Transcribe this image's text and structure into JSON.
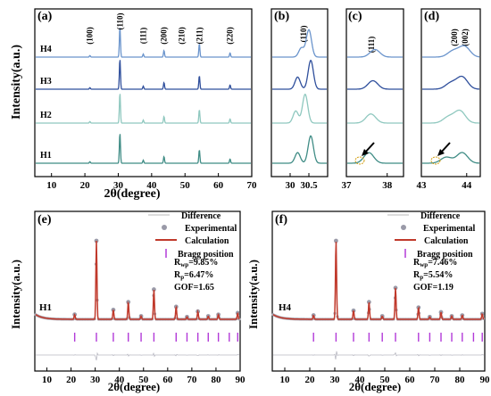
{
  "colors": {
    "H1": "#3f8c85",
    "H2": "#8fc8bf",
    "H3": "#2f4f9c",
    "H4": "#6a94cc",
    "refine_calc": "#c0392b",
    "refine_exp": "#9a9aa8",
    "bragg": "#b23ad8",
    "diff": "#9a9aa8"
  },
  "panels": {
    "a": "(a)",
    "b": "(b)",
    "c": "(c)",
    "d": "(d)",
    "e": "(e)",
    "f": "(f)"
  },
  "axes": {
    "ylabel": "Intensity(a.u.)",
    "xlabel": "2θ(degree)"
  },
  "sample_labels": [
    "H1",
    "H2",
    "H3",
    "H4"
  ],
  "peak_labels_a": [
    {
      "text": "(100)",
      "x": 21.5
    },
    {
      "text": "(110)",
      "x": 30.5
    },
    {
      "text": "(111)",
      "x": 37.5
    },
    {
      "text": "(200)",
      "x": 43.7
    },
    {
      "text": "(210)",
      "x": 49.0
    },
    {
      "text": "(211)",
      "x": 54.3
    },
    {
      "text": "(220)",
      "x": 63.5
    }
  ],
  "peak_labels_zoom": {
    "b": "(110)",
    "c": "(111)",
    "d": "(200)",
    "d2": "(002)"
  },
  "legend": {
    "difference": "Difference",
    "experimental": "Experimental",
    "calculation": "Calculation",
    "bragg": "Bragg position"
  },
  "refinement": {
    "e": {
      "sample": "H1",
      "rwp": "9.85%",
      "rp": "6.47%",
      "gof": "GOF=1.65"
    },
    "f": {
      "sample": "H4",
      "rwp": "7.46%",
      "rp": "5.54%",
      "gof": "GOF=1.19"
    }
  },
  "chart_data": [
    {
      "type": "line",
      "panel": "a",
      "xlim": [
        5,
        70
      ],
      "x_ticks": [
        10,
        20,
        30,
        40,
        50,
        60,
        70
      ],
      "series": [
        {
          "name": "H1",
          "peaks": [
            [
              21.5,
              0.05
            ],
            [
              30.5,
              1.0
            ],
            [
              37.5,
              0.1
            ],
            [
              43.7,
              0.22
            ],
            [
              54.3,
              0.45
            ],
            [
              63.5,
              0.14
            ]
          ]
        },
        {
          "name": "H2",
          "peaks": [
            [
              21.5,
              0.05
            ],
            [
              30.5,
              1.0
            ],
            [
              37.5,
              0.1
            ],
            [
              43.7,
              0.22
            ],
            [
              54.3,
              0.45
            ],
            [
              63.5,
              0.14
            ]
          ]
        },
        {
          "name": "H3",
          "peaks": [
            [
              21.5,
              0.05
            ],
            [
              30.5,
              1.0
            ],
            [
              37.5,
              0.1
            ],
            [
              43.7,
              0.22
            ],
            [
              54.3,
              0.45
            ],
            [
              63.5,
              0.14
            ]
          ]
        },
        {
          "name": "H4",
          "peaks": [
            [
              21.5,
              0.05
            ],
            [
              30.5,
              1.0
            ],
            [
              37.5,
              0.1
            ],
            [
              43.7,
              0.22
            ],
            [
              54.3,
              0.45
            ],
            [
              63.5,
              0.14
            ]
          ]
        }
      ]
    },
    {
      "type": "line",
      "panel": "b",
      "xlim": [
        29.5,
        31.0
      ],
      "x_ticks": [
        30,
        30.5
      ],
      "series": [
        {
          "name": "H1",
          "peaks": [
            [
              30.2,
              0.35
            ],
            [
              30.55,
              0.9
            ]
          ]
        },
        {
          "name": "H2",
          "peaks": [
            [
              30.15,
              0.4
            ],
            [
              30.4,
              0.95
            ]
          ]
        },
        {
          "name": "H3",
          "peaks": [
            [
              30.2,
              0.4
            ],
            [
              30.55,
              0.95
            ]
          ]
        },
        {
          "name": "H4",
          "peaks": [
            [
              30.3,
              0.3
            ],
            [
              30.5,
              0.9
            ]
          ]
        }
      ]
    },
    {
      "type": "line",
      "panel": "c",
      "xlim": [
        37.0,
        38.4
      ],
      "x_ticks": [
        37,
        38
      ],
      "series": [
        {
          "name": "H1",
          "peaks": [
            [
              37.55,
              0.35
            ]
          ]
        },
        {
          "name": "H2",
          "peaks": [
            [
              37.6,
              0.3
            ]
          ]
        },
        {
          "name": "H3",
          "peaks": [
            [
              37.65,
              0.28
            ]
          ]
        },
        {
          "name": "H4",
          "peaks": [
            [
              37.7,
              0.25
            ]
          ]
        }
      ]
    },
    {
      "type": "line",
      "panel": "d",
      "xlim": [
        43.0,
        44.3
      ],
      "x_ticks": [
        43,
        44
      ],
      "series": [
        {
          "name": "H1",
          "peaks": [
            [
              43.55,
              0.2
            ],
            [
              43.9,
              0.35
            ]
          ]
        },
        {
          "name": "H2",
          "peaks": [
            [
              43.6,
              0.2
            ],
            [
              43.85,
              0.4
            ]
          ]
        },
        {
          "name": "H3",
          "peaks": [
            [
              43.65,
              0.2
            ],
            [
              43.9,
              0.4
            ]
          ]
        },
        {
          "name": "H4",
          "peaks": [
            [
              43.7,
              0.2
            ],
            [
              43.95,
              0.35
            ]
          ]
        }
      ]
    },
    {
      "type": "line",
      "panel": "e",
      "xlim": [
        5,
        90
      ],
      "x_ticks": [
        10,
        20,
        30,
        40,
        50,
        60,
        70,
        80,
        90
      ],
      "peaks": [
        [
          21.5,
          0.06
        ],
        [
          30.5,
          1.0
        ],
        [
          37.5,
          0.12
        ],
        [
          43.7,
          0.22
        ],
        [
          49.0,
          0.04
        ],
        [
          54.3,
          0.38
        ],
        [
          63.5,
          0.16
        ],
        [
          68.0,
          0.03
        ],
        [
          72.5,
          0.1
        ],
        [
          76.8,
          0.04
        ],
        [
          81.0,
          0.06
        ],
        [
          89.0,
          0.08
        ]
      ],
      "bragg_positions": [
        21.5,
        30.5,
        37.5,
        43.7,
        49.0,
        54.3,
        63.5,
        68.0,
        72.5,
        76.8,
        81.0,
        85.5,
        89.0
      ]
    },
    {
      "type": "line",
      "panel": "f",
      "xlim": [
        5,
        90
      ],
      "x_ticks": [
        10,
        20,
        30,
        40,
        50,
        60,
        70,
        80,
        90
      ],
      "peaks": [
        [
          21.5,
          0.05
        ],
        [
          30.5,
          1.0
        ],
        [
          37.5,
          0.11
        ],
        [
          43.7,
          0.22
        ],
        [
          49.0,
          0.04
        ],
        [
          54.3,
          0.4
        ],
        [
          63.5,
          0.15
        ],
        [
          68.0,
          0.03
        ],
        [
          72.5,
          0.09
        ],
        [
          76.8,
          0.04
        ],
        [
          81.0,
          0.05
        ],
        [
          89.0,
          0.07
        ]
      ],
      "bragg_positions": [
        21.5,
        30.5,
        37.5,
        43.7,
        49.0,
        54.3,
        63.5,
        68.0,
        72.5,
        76.8,
        81.0,
        85.5,
        89.0
      ]
    }
  ]
}
